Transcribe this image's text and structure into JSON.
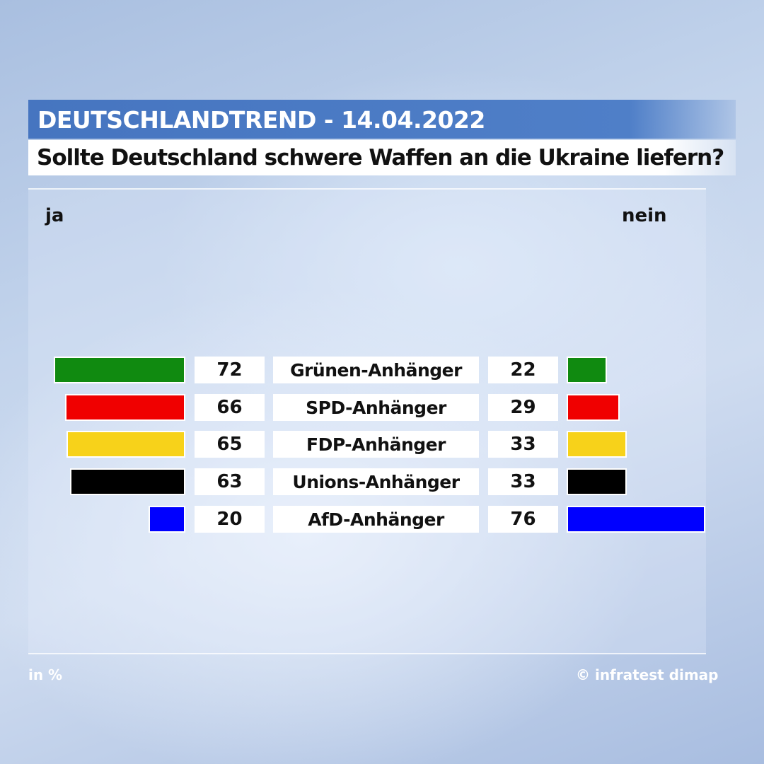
{
  "header": {
    "title": "DEUTSCHLANDTREND - 14.04.2022",
    "question": "Sollte Deutschland schwere Waffen an die Ukraine liefern?"
  },
  "labels": {
    "yes": "ja",
    "no": "nein"
  },
  "footer": {
    "unit": "in %",
    "source": "© infratest dimap"
  },
  "colors": {
    "title_bar": "#4675c0",
    "subtitle_bar": "#ffffff"
  },
  "chart_data": {
    "type": "bar",
    "categories": [
      "Grünen-Anhänger",
      "SPD-Anhänger",
      "FDP-Anhänger",
      "Unions-Anhänger",
      "AfD-Anhänger"
    ],
    "series": [
      {
        "name": "ja",
        "values": [
          72,
          66,
          65,
          63,
          20
        ]
      },
      {
        "name": "nein",
        "values": [
          22,
          29,
          33,
          33,
          76
        ]
      }
    ],
    "bar_colors": [
      "#108a10",
      "#f00000",
      "#f7d21a",
      "#000000",
      "#0000ff"
    ],
    "xlim": [
      0,
      100
    ]
  }
}
